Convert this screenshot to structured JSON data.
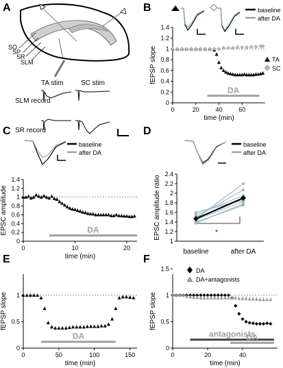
{
  "panels": {
    "A": {
      "label": "A",
      "layers": [
        "SO",
        "SP",
        "SR",
        "SLM"
      ],
      "stim_ta": "TA stim",
      "stim_sc": "SC stim",
      "rec_slm": "SLM record",
      "rec_sr": "SR record"
    },
    "B": {
      "label": "B",
      "legend": [
        "baseline",
        "after DA"
      ],
      "legend2": [
        "TA",
        "SC"
      ]
    },
    "C": {
      "label": "C",
      "legend": [
        "baseline",
        "after DA"
      ]
    },
    "D": {
      "label": "D",
      "legend": [
        "baseline",
        "after DA"
      ],
      "sig": "*"
    },
    "E": {
      "label": "E"
    },
    "F": {
      "label": "F",
      "legend": [
        "DA",
        "DA+antagonists"
      ],
      "antag": "antagonists"
    }
  },
  "colors": {
    "dark": "#000000",
    "gray": "#a0a0a0",
    "light": "#b8b8b8"
  },
  "chart_data": [
    {
      "id": "B",
      "type": "scatter",
      "xlabel": "time (min)",
      "ylabel": "fEPSP slope",
      "xlim": [
        0,
        80
      ],
      "ylim": [
        0,
        1.4
      ],
      "xticks": [
        0,
        20,
        40,
        60
      ],
      "yticks": [
        0,
        0.2,
        0.4,
        0.6,
        0.8,
        1,
        1.2,
        1.4
      ],
      "ytick_labels": [
        "0",
        "0.2",
        "0.4",
        "0.6",
        "0.8",
        "1",
        "1.2",
        "1.4"
      ],
      "bar": {
        "label": "DA",
        "x": [
          30,
          75
        ],
        "y": 0.13
      },
      "series": [
        {
          "name": "TA",
          "marker": "triangle",
          "color": "#000000",
          "x": [
            0,
            4,
            8,
            12,
            16,
            20,
            24,
            28,
            32,
            36,
            38,
            40,
            42,
            44,
            46,
            48,
            50,
            52,
            54,
            56,
            58,
            60,
            62,
            64,
            66,
            68,
            70,
            72,
            74,
            76,
            78
          ],
          "y": [
            1.0,
            1.0,
            1.0,
            1.0,
            1.0,
            1.0,
            1.0,
            1.0,
            1.0,
            0.98,
            0.9,
            0.75,
            0.65,
            0.6,
            0.57,
            0.55,
            0.54,
            0.53,
            0.52,
            0.52,
            0.52,
            0.52,
            0.53,
            0.52,
            0.52,
            0.52,
            0.52,
            0.53,
            0.53,
            0.54,
            0.55
          ]
        },
        {
          "name": "SC",
          "marker": "diamond",
          "color": "#b8b8b8",
          "x": [
            0,
            4,
            8,
            12,
            16,
            20,
            24,
            28,
            32,
            36,
            40,
            44,
            48,
            52,
            56,
            60,
            64,
            68,
            72,
            76,
            78
          ],
          "y": [
            1.0,
            1.0,
            1.0,
            1.0,
            1.0,
            1.0,
            1.0,
            1.0,
            1.0,
            1.0,
            1.0,
            1.02,
            1.02,
            1.02,
            1.03,
            1.03,
            1.03,
            1.04,
            1.04,
            1.05,
            1.05
          ]
        }
      ]
    },
    {
      "id": "C",
      "type": "scatter",
      "xlabel": "time (min)",
      "ylabel": "EPSC amplitude",
      "xlim": [
        0,
        22
      ],
      "ylim": [
        0,
        1.4
      ],
      "xticks": [
        0,
        10,
        20
      ],
      "yticks": [
        0,
        0.2,
        0.4,
        0.6,
        0.8,
        1,
        1.2,
        1.4
      ],
      "ytick_labels": [
        "0",
        "0.2",
        "0.4",
        "0.6",
        "0.8",
        "1",
        "1.2",
        "1.4"
      ],
      "bar": {
        "label": "DA",
        "x": [
          5,
          22
        ],
        "y": 0.13
      },
      "series": [
        {
          "name": "",
          "marker": "triangle",
          "color": "#000000",
          "x": [
            0,
            0.5,
            1,
            1.5,
            2,
            2.5,
            3,
            3.5,
            4,
            4.5,
            5,
            5.5,
            6,
            6.5,
            7,
            7.5,
            8,
            8.5,
            9,
            9.5,
            10,
            10.5,
            11,
            11.5,
            12,
            12.5,
            13,
            13.5,
            14,
            14.5,
            15,
            15.5,
            16,
            16.5,
            17,
            17.5,
            18,
            18.5,
            19,
            19.5,
            20,
            20.5,
            21,
            21.5
          ],
          "y": [
            1.0,
            1.0,
            1.02,
            0.98,
            1.0,
            1.05,
            1.02,
            1.0,
            1.03,
            1.0,
            0.98,
            1.02,
            0.97,
            0.95,
            0.9,
            0.86,
            0.82,
            0.78,
            0.75,
            0.73,
            0.72,
            0.7,
            0.68,
            0.66,
            0.65,
            0.63,
            0.62,
            0.62,
            0.6,
            0.6,
            0.6,
            0.6,
            0.6,
            0.6,
            0.58,
            0.58,
            0.6,
            0.58,
            0.58,
            0.57,
            0.57,
            0.56,
            0.56,
            0.57
          ]
        }
      ]
    },
    {
      "id": "D",
      "type": "line",
      "xlabel": "",
      "ylabel": "EPSC amplitude ratio",
      "ylim": [
        1,
        2.4
      ],
      "categories": [
        "baseline",
        "after DA"
      ],
      "yticks": [
        1,
        1.2,
        1.4,
        1.6,
        1.8,
        2,
        2.2,
        2.4
      ],
      "ytick_labels": [
        "1",
        "1.2",
        "1.4",
        "1.6",
        "1.8",
        "2",
        "2.2",
        "2.4"
      ],
      "mean": {
        "name": "",
        "values": [
          1.47,
          1.9
        ]
      },
      "cells": [
        [
          1.47,
          2.2
        ],
        [
          1.5,
          2.07
        ],
        [
          1.55,
          1.95
        ],
        [
          1.6,
          1.86
        ],
        [
          1.45,
          1.83
        ],
        [
          1.38,
          1.78
        ],
        [
          1.4,
          1.75
        ]
      ]
    },
    {
      "id": "E",
      "type": "scatter",
      "xlabel": "time (min)",
      "ylabel": "fEPSP slope",
      "xlim": [
        0,
        160
      ],
      "ylim": [
        0,
        1.4
      ],
      "xticks": [
        0,
        50,
        100,
        150
      ],
      "yticks": [
        0,
        0.5,
        1
      ],
      "ytick_labels": [
        "0",
        "0.5",
        "1"
      ],
      "bar": {
        "label": "DA",
        "x": [
          25,
          130
        ],
        "y": 0.12
      },
      "series": [
        {
          "name": "",
          "marker": "triangle",
          "color": "#000000",
          "x": [
            0,
            5,
            10,
            15,
            20,
            25,
            30,
            35,
            40,
            45,
            50,
            55,
            60,
            65,
            70,
            75,
            80,
            85,
            90,
            95,
            100,
            105,
            110,
            115,
            120,
            125,
            130,
            135,
            140,
            145,
            150,
            155
          ],
          "y": [
            1.0,
            1.0,
            1.0,
            1.0,
            1.0,
            0.95,
            0.75,
            0.48,
            0.4,
            0.38,
            0.38,
            0.38,
            0.38,
            0.39,
            0.4,
            0.4,
            0.4,
            0.4,
            0.41,
            0.41,
            0.41,
            0.41,
            0.42,
            0.42,
            0.45,
            0.55,
            0.75,
            0.95,
            0.97,
            0.97,
            0.96,
            0.95
          ]
        }
      ]
    },
    {
      "id": "F",
      "type": "scatter",
      "xlabel": "time (min)",
      "ylabel": "fEPSP slope",
      "xlim": [
        0,
        60
      ],
      "ylim": [
        0,
        1.4
      ],
      "xticks": [
        0,
        20,
        40
      ],
      "yticks": [
        0,
        0.5,
        1,
        1.5
      ],
      "ytick_labels": [
        "0",
        "0.5",
        "1",
        "1.5"
      ],
      "bars": [
        {
          "label": "antagonists",
          "x": [
            10,
            58
          ],
          "y": 0.16
        },
        {
          "label": "DA",
          "x": [
            33,
            58
          ],
          "y": 0.1
        }
      ],
      "series": [
        {
          "name": "DA",
          "marker": "diamond",
          "color": "#000000",
          "x": [
            0,
            2,
            4,
            6,
            8,
            10,
            12,
            14,
            16,
            18,
            20,
            22,
            24,
            26,
            28,
            30,
            32,
            34,
            36,
            38,
            40,
            42,
            44,
            46,
            48,
            50,
            52,
            54,
            56
          ],
          "y": [
            1.0,
            1.0,
            1.0,
            1.0,
            1.0,
            1.0,
            1.0,
            1.0,
            1.0,
            1.0,
            1.0,
            1.0,
            1.0,
            1.0,
            1.0,
            1.0,
            1.0,
            0.95,
            0.8,
            0.65,
            0.55,
            0.5,
            0.48,
            0.47,
            0.46,
            0.46,
            0.46,
            0.47,
            0.46
          ]
        },
        {
          "name": "DA+antagonists",
          "marker": "triangle",
          "color": "#a0a0a0",
          "x": [
            0,
            2,
            4,
            6,
            8,
            10,
            12,
            14,
            16,
            18,
            20,
            22,
            24,
            26,
            28,
            30,
            32,
            34,
            36,
            38,
            40,
            42,
            44,
            46,
            48,
            50,
            52,
            54,
            56
          ],
          "y": [
            1.0,
            1.0,
            1.0,
            1.0,
            0.98,
            0.97,
            0.96,
            0.96,
            0.95,
            0.95,
            0.95,
            0.95,
            0.95,
            0.95,
            0.95,
            0.95,
            0.95,
            0.95,
            0.95,
            0.94,
            0.94,
            0.94,
            0.93,
            0.93,
            0.93,
            0.92,
            0.92,
            0.92,
            0.92
          ]
        }
      ]
    }
  ]
}
